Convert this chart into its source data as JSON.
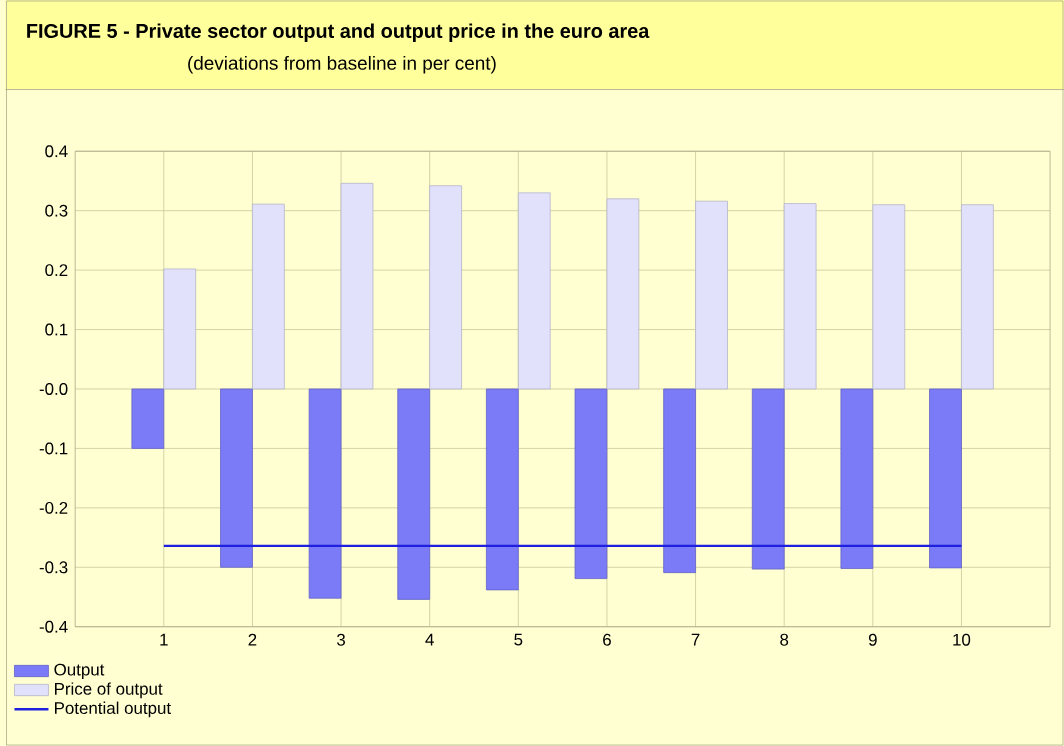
{
  "chart_data": {
    "type": "bar",
    "title": "FIGURE 5 -   Private sector output and output price in the euro area",
    "subtitle": "(deviations from baseline in per cent)",
    "x": [
      1,
      2,
      3,
      4,
      5,
      6,
      7,
      8,
      9,
      10
    ],
    "series": [
      {
        "name": "Output",
        "color": "#7b7bf8",
        "values": [
          -0.1,
          -0.3,
          -0.352,
          -0.354,
          -0.338,
          -0.319,
          -0.309,
          -0.303,
          -0.302,
          -0.301
        ]
      },
      {
        "name": "Price of output",
        "color": "#e1e1fc",
        "values": [
          0.202,
          0.311,
          0.346,
          0.342,
          0.33,
          0.32,
          0.316,
          0.312,
          0.31,
          0.31
        ]
      },
      {
        "name": "Potential output",
        "type": "line",
        "color": "#1f1fe0",
        "values": [
          -0.264,
          -0.264,
          -0.264,
          -0.264,
          -0.264,
          -0.264,
          -0.264,
          -0.264,
          -0.264,
          -0.264
        ]
      }
    ],
    "xlim": [
      0,
      11
    ],
    "xticks": [
      1,
      2,
      3,
      4,
      5,
      6,
      7,
      8,
      9,
      10
    ],
    "ylim": [
      -0.4,
      0.4
    ],
    "yticks": [
      -0.4,
      -0.3,
      -0.2,
      -0.1,
      {
        "value": 0,
        "label": "-0.0"
      },
      0.1,
      0.2,
      0.3,
      0.4
    ],
    "grid": true,
    "legend": "bottom left",
    "marker": "none",
    "line_style": "solid"
  }
}
